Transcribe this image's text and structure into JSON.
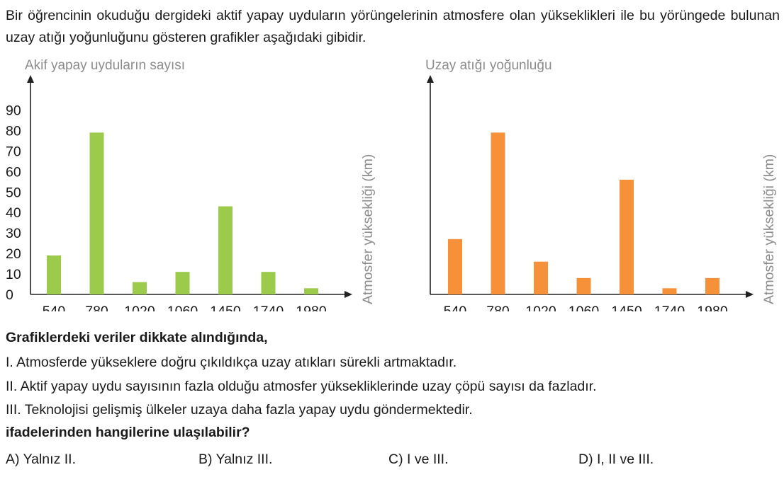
{
  "question": {
    "intro": "Bir öğrencinin okuduğu dergideki aktif yapay uyduların yörüngelerinin atmosfere olan yükseklikleri ile bu yörüngede bulunan uzay atığı yoğunluğunu gösteren grafikler aşağıdaki gibidir.",
    "lead": "Grafiklerdeki veriler dikkate alındığında,",
    "statements": [
      "I.  Atmosferde yükseklere doğru çıkıldıkça uzay atıkları sürekli artmaktadır.",
      "II. Aktif yapay uydu sayısının fazla olduğu atmosfer yüksekliklerinde uzay çöpü sayısı da fazladır.",
      "III. Teknolojisi gelişmiş ülkeler uzaya daha fazla yapay uydu göndermektedir."
    ],
    "prompt": "ifadelerinden hangilerine ulaşılabilir?",
    "options": [
      "A) Yalnız II.",
      "B) Yalnız III.",
      "C) I ve III.",
      "D) I, II ve III."
    ]
  },
  "chart_data": [
    {
      "type": "bar",
      "title": "Akif yapay uyduların sayısı",
      "xlabel": "Atmosfer yüksekliği (km)",
      "categories": [
        "540",
        "780",
        "1020",
        "1060",
        "1450",
        "1740",
        "1980"
      ],
      "values": [
        19,
        79,
        6,
        11,
        43,
        11,
        3
      ],
      "ylim": [
        0,
        90
      ],
      "yticks": [
        0,
        10,
        20,
        30,
        40,
        50,
        60,
        70,
        80,
        90
      ],
      "color": "#9ccb4b",
      "grid": false
    },
    {
      "type": "bar",
      "title": "Uzay atığı yoğunluğu",
      "xlabel": "Atmosfer yüksekliği (km)",
      "categories": [
        "540",
        "780",
        "1020",
        "1060",
        "1450",
        "1740",
        "1980"
      ],
      "values": [
        27,
        79,
        16,
        8,
        56,
        3,
        8
      ],
      "ylim": [
        0,
        90
      ],
      "yticks": [],
      "color": "#f6913a",
      "grid": false
    }
  ],
  "colors": {
    "axis": "#222222",
    "title": "#8c8c8c"
  }
}
